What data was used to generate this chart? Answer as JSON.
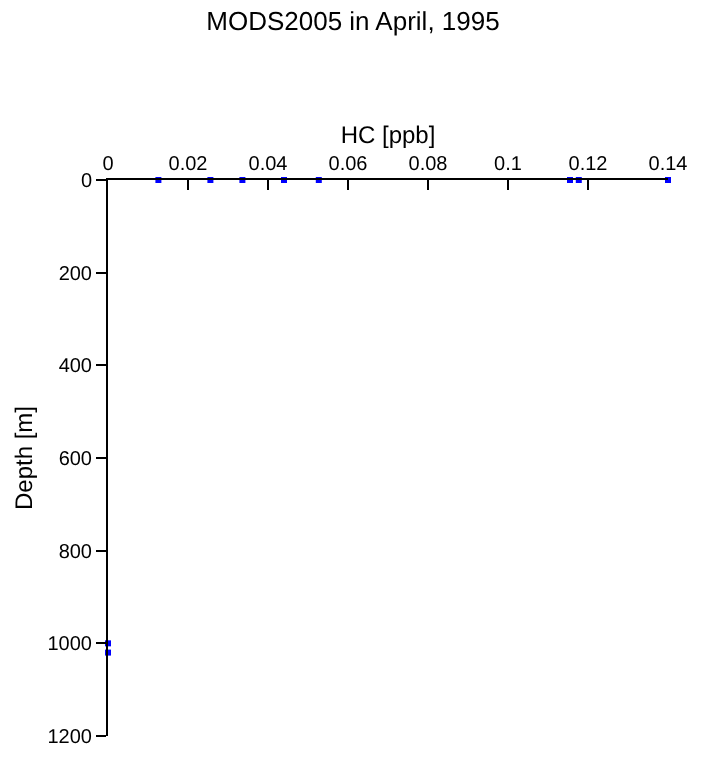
{
  "chart_data": {
    "type": "scatter",
    "title": "MODS2005 in April, 1995",
    "xlabel": "HC [ppb]",
    "ylabel": "Depth [m]",
    "x": [
      0.0126,
      0.0256,
      0.0336,
      0.044,
      0.0527,
      0.1155,
      0.1177,
      0.14,
      0,
      0
    ],
    "values": [
      0,
      0,
      0,
      0,
      0,
      0,
      0,
      0,
      1000,
      1020
    ],
    "color": "#0000ff",
    "marker": "square",
    "xlim": [
      0,
      0.14
    ],
    "xticks": [
      0,
      0.02,
      0.04,
      0.06,
      0.08,
      0.1,
      0.12,
      0.14
    ],
    "ylim": [
      1200,
      0
    ],
    "yticks": [
      0,
      200,
      400,
      600,
      800,
      1000,
      1200
    ],
    "grid": false,
    "legend": false
  }
}
